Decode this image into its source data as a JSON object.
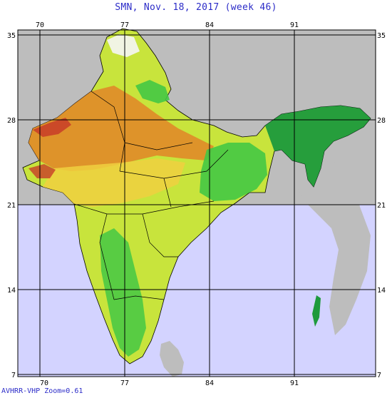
{
  "title": "SMN, Nov. 18, 2017 (week 46)",
  "footer": "AVHRR-VHP Zoom=0.61",
  "colors": {
    "sea": "#d3d3ff",
    "land_background": "#bdbdbd",
    "grid": "#000000",
    "title": "#2c2cc8",
    "index_low": "#c83c28",
    "index_mid_low": "#e08a28",
    "index_mid": "#f0d040",
    "index_mid_high": "#a8e040",
    "index_high": "#44c844",
    "index_very_high": "#1e9a3c"
  },
  "map": {
    "longitudes": [
      70,
      77,
      84,
      91
    ],
    "latitudes": [
      35,
      28,
      21,
      14,
      7
    ],
    "labels": {
      "top": [
        "70",
        "77",
        "84",
        "91"
      ],
      "bottom": [
        "70",
        "77",
        "84",
        "91"
      ],
      "left": [
        "35",
        "28",
        "21",
        "14",
        "7"
      ],
      "right": [
        "35",
        "28",
        "21",
        "14",
        "7"
      ]
    }
  }
}
